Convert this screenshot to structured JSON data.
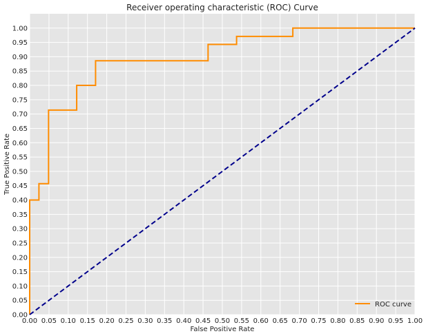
{
  "chart_data": {
    "type": "line",
    "title": "Receiver operating characteristic (ROC) Curve",
    "xlabel": "False Positive Rate",
    "ylabel": "True Positive Rate",
    "xlim": [
      0,
      1
    ],
    "ylim": [
      0,
      1.05
    ],
    "grid": true,
    "legend_position": "bottom-right",
    "x_ticks": [
      "0.00",
      "0.05",
      "0.10",
      "0.15",
      "0.20",
      "0.25",
      "0.30",
      "0.35",
      "0.40",
      "0.45",
      "0.50",
      "0.55",
      "0.60",
      "0.65",
      "0.70",
      "0.75",
      "0.80",
      "0.85",
      "0.90",
      "0.95",
      "1.00"
    ],
    "y_ticks": [
      "0.00",
      "0.05",
      "0.10",
      "0.15",
      "0.20",
      "0.25",
      "0.30",
      "0.35",
      "0.40",
      "0.45",
      "0.50",
      "0.55",
      "0.60",
      "0.65",
      "0.70",
      "0.75",
      "0.80",
      "0.85",
      "0.90",
      "0.95",
      "1.00"
    ],
    "series": [
      {
        "name": "ROC curve",
        "color": "#ff8c00",
        "style": "solid",
        "x": [
          0,
          0,
          0.024,
          0.024,
          0.049,
          0.049,
          0.122,
          0.122,
          0.171,
          0.171,
          0.463,
          0.463,
          0.537,
          0.537,
          0.683,
          0.683,
          1.0
        ],
        "y": [
          0,
          0.4,
          0.4,
          0.457,
          0.457,
          0.714,
          0.714,
          0.8,
          0.8,
          0.886,
          0.886,
          0.943,
          0.943,
          0.971,
          0.971,
          1.0,
          1.0
        ]
      },
      {
        "color": "#00008b",
        "style": "dashed",
        "x": [
          0,
          1
        ],
        "y": [
          0,
          1
        ]
      }
    ]
  }
}
